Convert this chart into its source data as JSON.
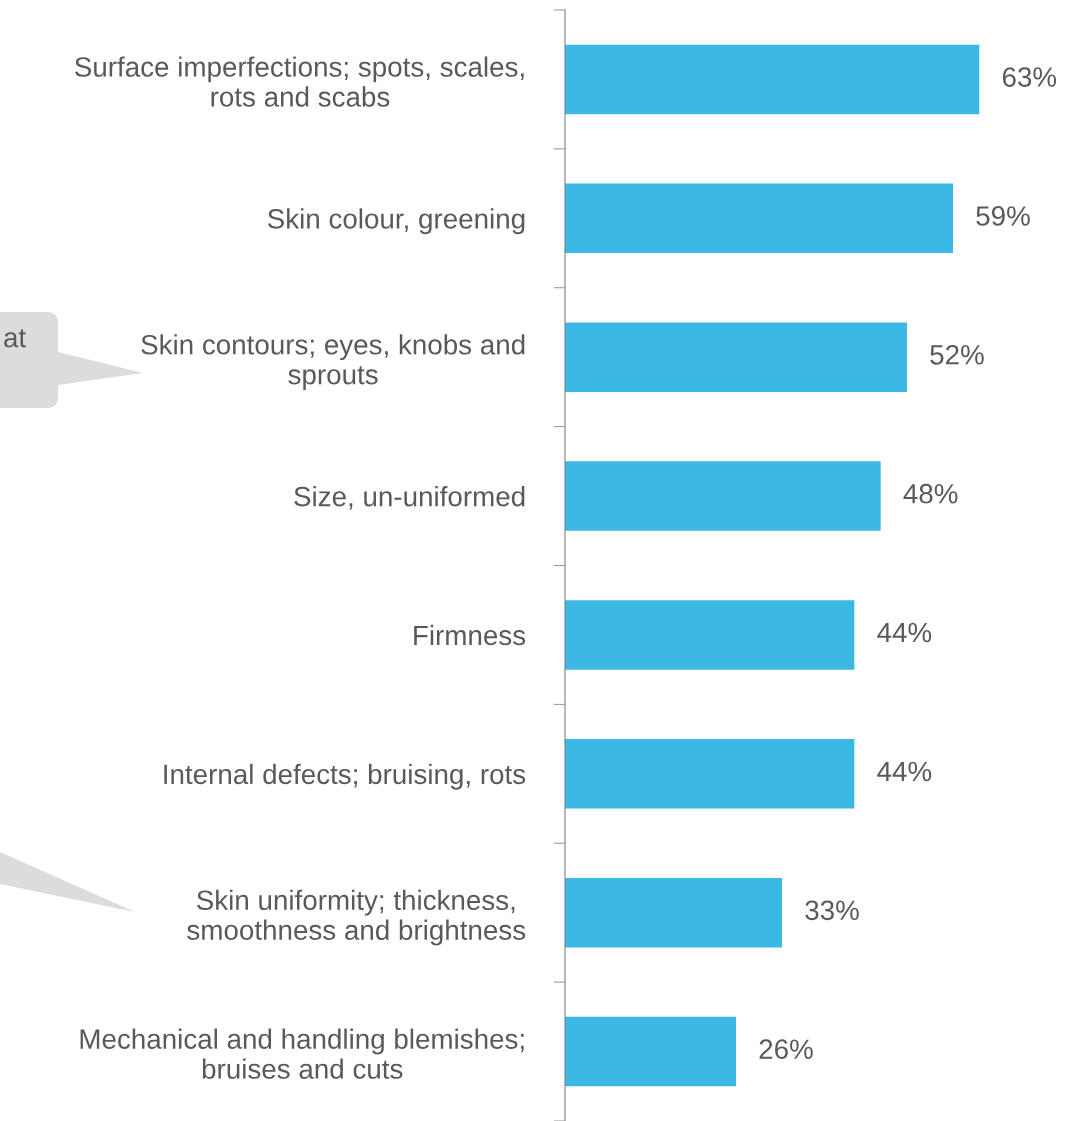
{
  "chart_data": {
    "type": "bar",
    "orientation": "horizontal",
    "categories": [
      "Surface imperfections; spots, scales,\nrots and scabs",
      "Skin colour, greening",
      "Skin contours; eyes, knobs and\nsprouts",
      "Size, un-uniformed",
      "Firmness",
      "Internal defects; bruising, rots",
      "Skin uniformity; thickness,\nsmoothness and brightness",
      "Mechanical and handling blemishes;\nbruises and cuts"
    ],
    "values": [
      63,
      59,
      52,
      48,
      44,
      44,
      33,
      26
    ],
    "color": "#3cb8e4",
    "value_labels": [
      "63%",
      "59%",
      "52%",
      "48%",
      "44%",
      "44%",
      "33%",
      "26%"
    ],
    "tick_labels": "y",
    "grid": false,
    "legend": false,
    "annotations": [
      "at"
    ]
  }
}
